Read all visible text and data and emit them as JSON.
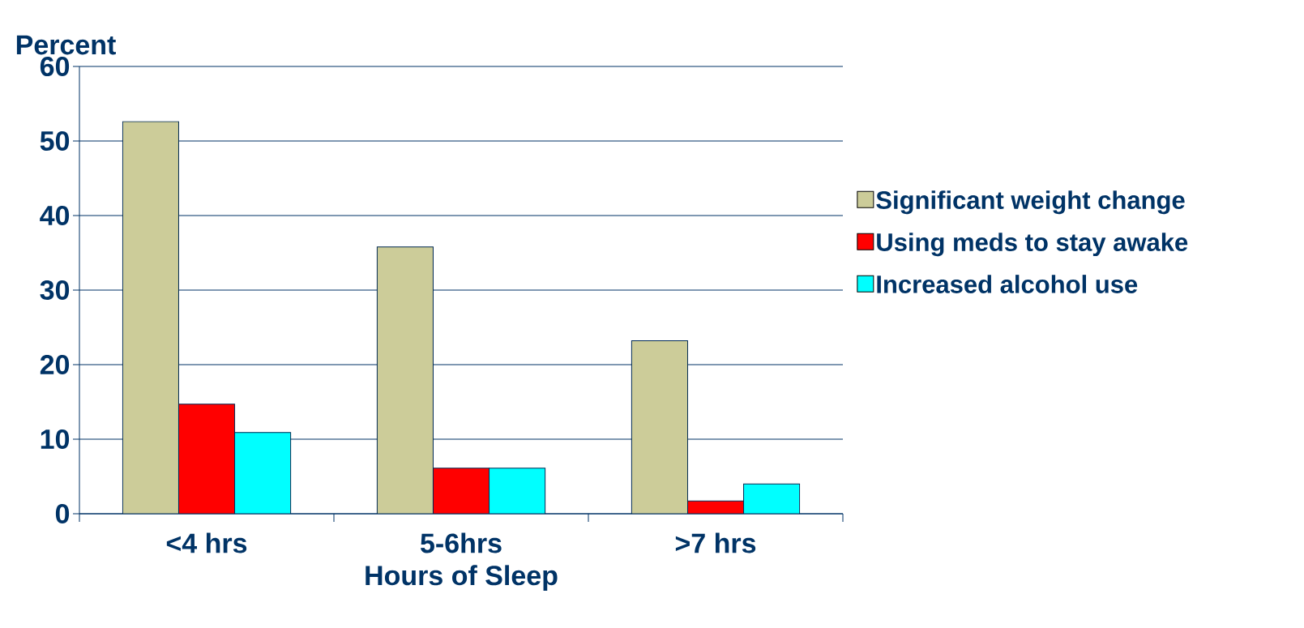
{
  "chart_data": {
    "type": "bar",
    "ylabel": "Percent",
    "xlabel": "Hours of Sleep",
    "categories": [
      "<4 hrs",
      "5-6hrs",
      ">7 hrs"
    ],
    "series": [
      {
        "name": "Significant weight change",
        "color": "#cccc99",
        "values": [
          52.6,
          35.8,
          23.2
        ]
      },
      {
        "name": "Using meds to stay awake",
        "color": "#ff0000",
        "values": [
          14.7,
          6.1,
          1.7
        ]
      },
      {
        "name": "Increased alcohol use",
        "color": "#00ffff",
        "values": [
          10.9,
          6.1,
          4.0
        ]
      }
    ],
    "ylim": [
      0,
      60
    ],
    "yticks": [
      0,
      10,
      20,
      30,
      40,
      50,
      60
    ],
    "grid": "y",
    "legend": "right"
  }
}
